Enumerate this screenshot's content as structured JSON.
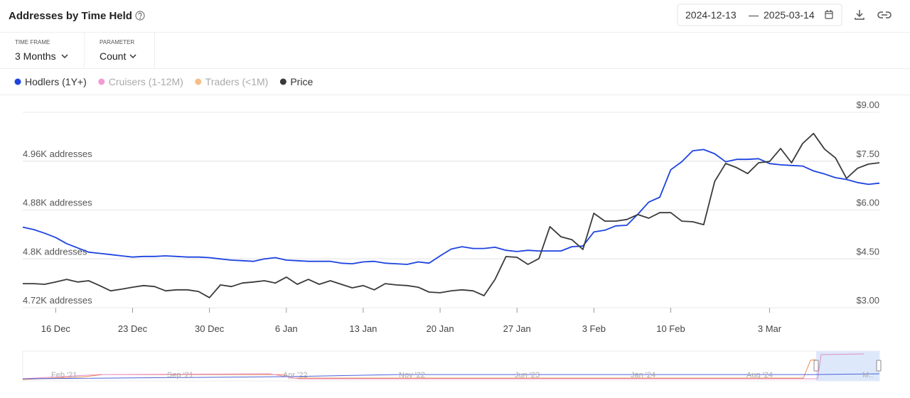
{
  "header": {
    "title": "Addresses by Time Held",
    "date_from": "2024-12-13",
    "date_separator": "—",
    "date_to": "2025-03-14"
  },
  "controls": [
    {
      "label": "TIME FRAME",
      "value": "3 Months"
    },
    {
      "label": "PARAMETER",
      "value": "Count"
    }
  ],
  "chart_data": {
    "type": "line",
    "categories": [
      null,
      null,
      null,
      "16 Dec",
      null,
      null,
      null,
      null,
      null,
      null,
      "23 Dec",
      null,
      null,
      null,
      null,
      null,
      null,
      "30 Dec",
      null,
      null,
      null,
      null,
      null,
      null,
      "6 Jan",
      null,
      null,
      null,
      null,
      null,
      null,
      "13 Jan",
      null,
      null,
      null,
      null,
      null,
      null,
      "20 Jan",
      null,
      null,
      null,
      null,
      null,
      null,
      "27 Jan",
      null,
      null,
      null,
      null,
      null,
      null,
      "3 Feb",
      null,
      null,
      null,
      null,
      null,
      null,
      "10 Feb",
      null,
      null,
      null,
      null,
      null,
      null,
      null,
      null,
      "3 Mar",
      null,
      null,
      null,
      null,
      null,
      null,
      null,
      null,
      null,
      null
    ],
    "series": [
      {
        "name": "Hodlers (1Y+)",
        "color": "#1d43e0",
        "values": [
          4852,
          4848,
          4842,
          4835,
          4825,
          4818,
          4811,
          4809,
          4807,
          4805,
          4803,
          4804,
          4804,
          4805,
          4804,
          4803,
          4803,
          4802,
          4800,
          4798,
          4797,
          4796,
          4800,
          4802,
          4798,
          4797,
          4796,
          4796,
          4796,
          4793,
          4792,
          4795,
          4796,
          4793,
          4792,
          4791,
          4795,
          4793,
          4805,
          4816,
          4820,
          4817,
          4817,
          4819,
          4814,
          4812,
          4814,
          4813,
          4813,
          4813,
          4820,
          4821,
          4844,
          4847,
          4854,
          4855,
          4873,
          4893,
          4901,
          4946,
          4959,
          4977,
          4979,
          4972,
          4959,
          4963,
          4963,
          4964,
          4956,
          4954,
          4953,
          4952,
          4944,
          4939,
          4933,
          4930,
          4925,
          4922,
          4924
        ]
      },
      {
        "name": "Cruisers (1-12M)",
        "color": "#f29ad6",
        "hidden": true
      },
      {
        "name": "Traders (<1M)",
        "color": "#f8bd8a",
        "hidden": true
      },
      {
        "name": "Price",
        "color": "#3a3a3a",
        "axis": "y2",
        "values": [
          3.74,
          3.74,
          3.72,
          3.79,
          3.87,
          3.79,
          3.83,
          3.68,
          3.52,
          3.57,
          3.63,
          3.68,
          3.65,
          3.52,
          3.55,
          3.55,
          3.5,
          3.31,
          3.7,
          3.65,
          3.76,
          3.79,
          3.83,
          3.76,
          3.94,
          3.72,
          3.87,
          3.72,
          3.83,
          3.72,
          3.61,
          3.68,
          3.55,
          3.74,
          3.7,
          3.68,
          3.63,
          3.48,
          3.46,
          3.52,
          3.55,
          3.52,
          3.37,
          3.87,
          4.57,
          4.55,
          4.33,
          4.51,
          5.49,
          5.18,
          5.09,
          4.79,
          5.9,
          5.66,
          5.66,
          5.71,
          5.86,
          5.75,
          5.92,
          5.92,
          5.66,
          5.64,
          5.55,
          6.88,
          7.43,
          7.3,
          7.12,
          7.45,
          7.49,
          7.89,
          7.45,
          8.04,
          8.35,
          7.87,
          7.6,
          6.97,
          7.28,
          7.41,
          7.45
        ]
      }
    ],
    "ylim": [
      4720,
      5040
    ],
    "yticks": [
      {
        "value": 4720,
        "label": "4.72K addresses"
      },
      {
        "value": 4800,
        "label": "4.8K addresses"
      },
      {
        "value": 4880,
        "label": "4.88K addresses"
      },
      {
        "value": 4960,
        "label": "4.96K addresses"
      }
    ],
    "y2lim": [
      3,
      9
    ],
    "y2ticks": [
      {
        "value": 3,
        "label": "$3.00"
      },
      {
        "value": 4.5,
        "label": "$4.50"
      },
      {
        "value": 6,
        "label": "$6.00"
      },
      {
        "value": 7.5,
        "label": "$7.50"
      },
      {
        "value": 9,
        "label": "$9.00"
      }
    ],
    "grid": true
  },
  "navigator": {
    "labels": [
      "Feb '21",
      "Sep '21",
      "Apr '22",
      "Nov '22",
      "Jun '23",
      "Jan '24",
      "Aug '24",
      "M.."
    ]
  }
}
